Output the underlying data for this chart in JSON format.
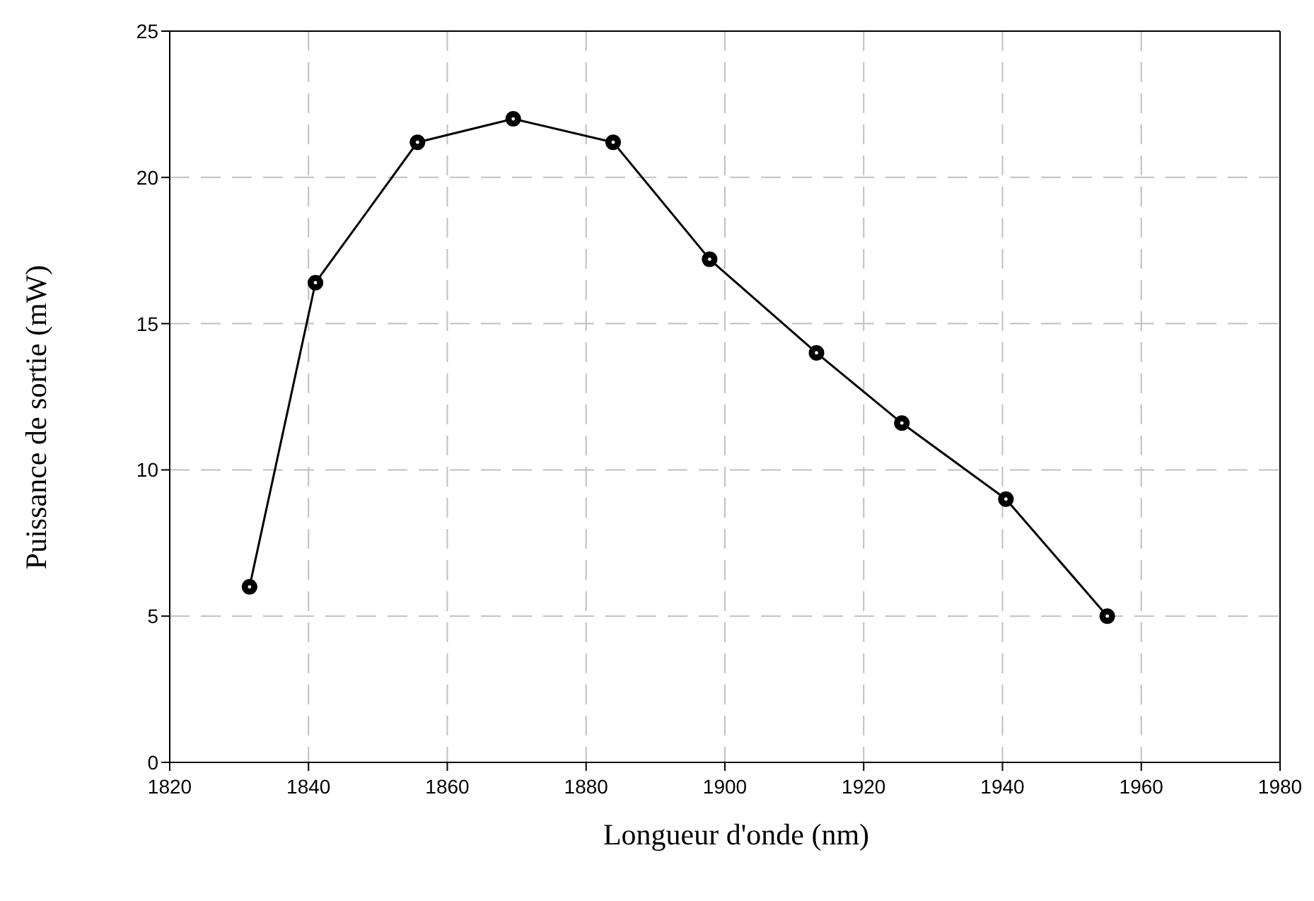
{
  "chart_data": {
    "type": "line",
    "xlabel": "Longueur d'onde (nm)",
    "ylabel": "Puissance de sortie (mW)",
    "x": [
      1831.5,
      1841,
      1855.7,
      1869.5,
      1883.9,
      1897.8,
      1913.2,
      1925.5,
      1940.5,
      1955.1
    ],
    "series": [
      {
        "color": "#000000",
        "values": [
          6,
          16.4,
          21.2,
          22,
          21.2,
          17.2,
          14,
          11.6,
          9,
          5
        ]
      }
    ],
    "xlim": [
      1820,
      1980
    ],
    "xticks": [
      1820,
      1840,
      1860,
      1880,
      1900,
      1920,
      1940,
      1960,
      1980
    ],
    "ylim": [
      0,
      25
    ],
    "yticks": [
      0,
      5,
      10,
      15,
      20,
      25
    ],
    "grid": true,
    "marker": "circle",
    "line_style": "solid"
  }
}
